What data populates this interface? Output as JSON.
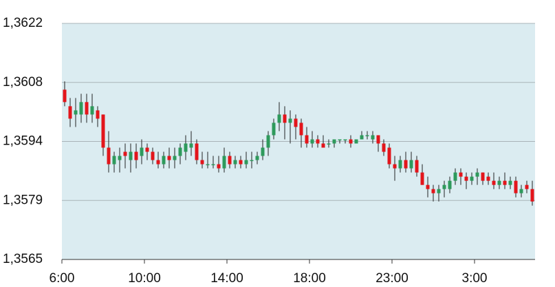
{
  "chart_data": {
    "type": "candlestick",
    "up_color": "#2e9a5c",
    "down_color": "#e3151b",
    "background": "#dbecf1",
    "grid": true,
    "ylim": [
      1.3565,
      1.3622
    ],
    "yticks": [
      {
        "value": 1.3565,
        "label": "1,3565"
      },
      {
        "value": 1.357925,
        "label": "1,3579"
      },
      {
        "value": 1.35935,
        "label": "1,3594"
      },
      {
        "value": 1.360775,
        "label": "1,3608"
      },
      {
        "value": 1.3622,
        "label": "1,3622"
      }
    ],
    "categories": [
      "6:00",
      null,
      null,
      null,
      null,
      null,
      null,
      null,
      null,
      null,
      null,
      null,
      null,
      null,
      null,
      "10:00",
      null,
      null,
      null,
      null,
      null,
      null,
      null,
      null,
      null,
      null,
      null,
      null,
      null,
      null,
      "14:00",
      null,
      null,
      null,
      null,
      null,
      null,
      null,
      null,
      null,
      null,
      null,
      null,
      null,
      null,
      "18:00",
      null,
      null,
      null,
      null,
      null,
      null,
      null,
      null,
      null,
      null,
      null,
      null,
      null,
      null,
      "23:00",
      null,
      null,
      null,
      null,
      null,
      null,
      null,
      null,
      null,
      null,
      null,
      null,
      null,
      null,
      "3:00",
      null,
      null,
      null,
      null,
      null,
      null,
      null,
      null,
      null,
      null
    ],
    "ohlc": [
      [
        1.3606,
        1.3608,
        1.3602,
        1.3603
      ],
      [
        1.3602,
        1.3604,
        1.3597,
        1.3599
      ],
      [
        1.36,
        1.3604,
        1.3597,
        1.3601
      ],
      [
        1.36,
        1.3605,
        1.3598,
        1.3603
      ],
      [
        1.3603,
        1.3605,
        1.3598,
        1.36
      ],
      [
        1.36,
        1.3605,
        1.3598,
        1.3602
      ],
      [
        1.3601,
        1.3602,
        1.3597,
        1.3599
      ],
      [
        1.36,
        1.36,
        1.359,
        1.3592
      ],
      [
        1.3592,
        1.3596,
        1.3586,
        1.3588
      ],
      [
        1.3588,
        1.3591,
        1.3586,
        1.359
      ],
      [
        1.3589,
        1.3592,
        1.3586,
        1.359
      ],
      [
        1.3591,
        1.3593,
        1.3587,
        1.359
      ],
      [
        1.3589,
        1.3593,
        1.3586,
        1.3591
      ],
      [
        1.3591,
        1.3593,
        1.3587,
        1.3589
      ],
      [
        1.359,
        1.3594,
        1.3588,
        1.3592
      ],
      [
        1.3592,
        1.3593,
        1.3589,
        1.3591
      ],
      [
        1.3591,
        1.3592,
        1.3588,
        1.3589
      ],
      [
        1.3589,
        1.3591,
        1.3587,
        1.3588
      ],
      [
        1.3588,
        1.3591,
        1.3587,
        1.359
      ],
      [
        1.359,
        1.3592,
        1.3587,
        1.3589
      ],
      [
        1.3589,
        1.3592,
        1.3587,
        1.359
      ],
      [
        1.359,
        1.3593,
        1.3588,
        1.3592
      ],
      [
        1.3591,
        1.3595,
        1.3589,
        1.3593
      ],
      [
        1.3592,
        1.3596,
        1.359,
        1.3593
      ],
      [
        1.3593,
        1.3594,
        1.3588,
        1.3589
      ],
      [
        1.3589,
        1.3591,
        1.3587,
        1.3588
      ],
      [
        1.3588,
        1.3591,
        1.3587,
        1.3588
      ],
      [
        1.3588,
        1.359,
        1.3587,
        1.3588
      ],
      [
        1.3588,
        1.359,
        1.3586,
        1.3587
      ],
      [
        1.3587,
        1.3592,
        1.3586,
        1.359
      ],
      [
        1.359,
        1.3591,
        1.3587,
        1.3588
      ],
      [
        1.3588,
        1.359,
        1.3587,
        1.3589
      ],
      [
        1.3589,
        1.359,
        1.3587,
        1.3588
      ],
      [
        1.3588,
        1.3591,
        1.3587,
        1.3589
      ],
      [
        1.3589,
        1.3591,
        1.3587,
        1.3589
      ],
      [
        1.3589,
        1.3591,
        1.3588,
        1.359
      ],
      [
        1.359,
        1.3594,
        1.3589,
        1.3592
      ],
      [
        1.3592,
        1.3596,
        1.359,
        1.3595
      ],
      [
        1.3595,
        1.3599,
        1.3594,
        1.3598
      ],
      [
        1.3598,
        1.3603,
        1.3596,
        1.36
      ],
      [
        1.36,
        1.3602,
        1.3594,
        1.3598
      ],
      [
        1.3598,
        1.3601,
        1.3593,
        1.3599
      ],
      [
        1.3599,
        1.36,
        1.3594,
        1.3597
      ],
      [
        1.3598,
        1.3599,
        1.3592,
        1.3595
      ],
      [
        1.3595,
        1.3597,
        1.3592,
        1.3593
      ],
      [
        1.3593,
        1.3596,
        1.3592,
        1.3594
      ],
      [
        1.3594,
        1.3595,
        1.3592,
        1.3593
      ],
      [
        1.3593,
        1.3595,
        1.3592,
        1.3592
      ],
      [
        1.3593,
        1.3594,
        1.3592,
        1.3593
      ],
      [
        1.3593,
        1.3594,
        1.3592,
        1.3594
      ],
      [
        1.3594,
        1.3594,
        1.3593,
        1.3594
      ],
      [
        1.3594,
        1.3594,
        1.3593,
        1.3594
      ],
      [
        1.3594,
        1.3595,
        1.3592,
        1.3593
      ],
      [
        1.3593,
        1.3594,
        1.3593,
        1.3594
      ],
      [
        1.3594,
        1.3596,
        1.3594,
        1.3595
      ],
      [
        1.3595,
        1.3596,
        1.3594,
        1.3595
      ],
      [
        1.3594,
        1.3596,
        1.3593,
        1.3595
      ],
      [
        1.3595,
        1.3595,
        1.3591,
        1.3593
      ],
      [
        1.3593,
        1.3594,
        1.359,
        1.3591
      ],
      [
        1.3592,
        1.3593,
        1.3587,
        1.3588
      ],
      [
        1.3588,
        1.359,
        1.3584,
        1.3587
      ],
      [
        1.3587,
        1.359,
        1.3586,
        1.3589
      ],
      [
        1.3589,
        1.3591,
        1.3586,
        1.3587
      ],
      [
        1.3587,
        1.3591,
        1.3586,
        1.3589
      ],
      [
        1.3589,
        1.359,
        1.3585,
        1.3586
      ],
      [
        1.3586,
        1.3588,
        1.3583,
        1.3583
      ],
      [
        1.3583,
        1.3585,
        1.358,
        1.3582
      ],
      [
        1.3582,
        1.3583,
        1.3579,
        1.3581
      ],
      [
        1.3581,
        1.3583,
        1.3579,
        1.3582
      ],
      [
        1.3582,
        1.3584,
        1.358,
        1.3583
      ],
      [
        1.3582,
        1.3585,
        1.3581,
        1.3584
      ],
      [
        1.3584,
        1.3587,
        1.3583,
        1.3586
      ],
      [
        1.3586,
        1.3587,
        1.3583,
        1.3585
      ],
      [
        1.3585,
        1.3586,
        1.3582,
        1.3584
      ],
      [
        1.3584,
        1.3586,
        1.3583,
        1.3585
      ],
      [
        1.3585,
        1.3587,
        1.3583,
        1.3586
      ],
      [
        1.3586,
        1.3586,
        1.3583,
        1.3584
      ],
      [
        1.3585,
        1.3586,
        1.3583,
        1.3584
      ],
      [
        1.3584,
        1.3586,
        1.3582,
        1.3583
      ],
      [
        1.3583,
        1.3585,
        1.3582,
        1.3584
      ],
      [
        1.3584,
        1.3586,
        1.3582,
        1.3583
      ],
      [
        1.3583,
        1.3585,
        1.3582,
        1.3584
      ],
      [
        1.3584,
        1.3585,
        1.358,
        1.3581
      ],
      [
        1.3581,
        1.3583,
        1.358,
        1.3582
      ],
      [
        1.3583,
        1.3584,
        1.3581,
        1.3582
      ],
      [
        1.3582,
        1.3584,
        1.3578,
        1.3579
      ]
    ]
  }
}
